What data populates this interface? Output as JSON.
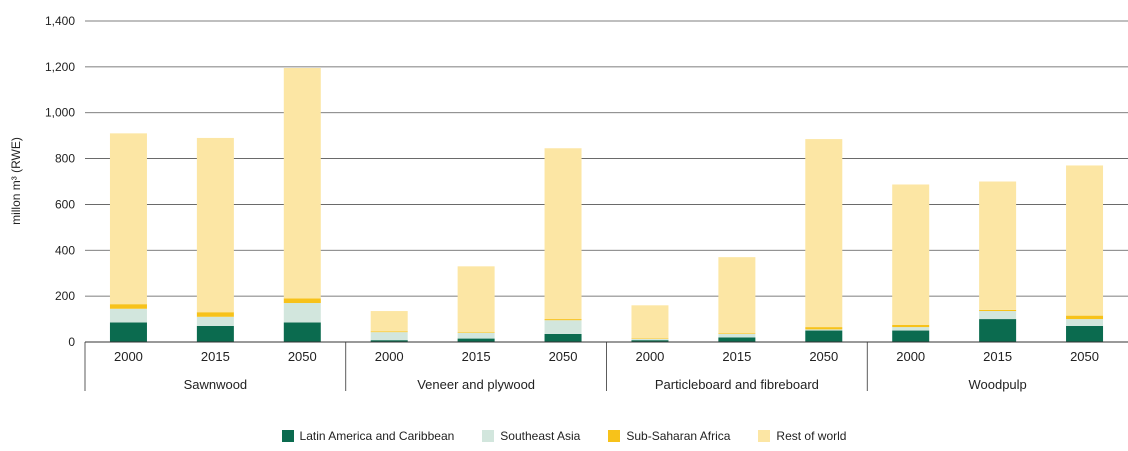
{
  "chart_data": {
    "type": "bar",
    "stacked": true,
    "ylabel": "millon m³ (RWE)",
    "ylim": [
      0,
      1400
    ],
    "yticks": [
      "0",
      "200",
      "400",
      "600",
      "800",
      "1,000",
      "1,200",
      "1,400"
    ],
    "grid": true,
    "legend_position": "bottom",
    "groups": [
      {
        "name": "Sawnwood",
        "years": [
          "2000",
          "2015",
          "2050"
        ]
      },
      {
        "name": "Veneer and plywood",
        "years": [
          "2000",
          "2015",
          "2050"
        ]
      },
      {
        "name": "Particleboard and fibreboard",
        "years": [
          "2000",
          "2015",
          "2050"
        ]
      },
      {
        "name": "Woodpulp",
        "years": [
          "2000",
          "2015",
          "2050"
        ]
      }
    ],
    "series": [
      {
        "name": "Latin America and Caribbean",
        "color": "#0b6b4f",
        "values": [
          85,
          70,
          85,
          8,
          15,
          35,
          8,
          20,
          50,
          50,
          100,
          70
        ]
      },
      {
        "name": "Southeast Asia",
        "color": "#d2e6dd",
        "values": [
          60,
          40,
          85,
          35,
          25,
          60,
          5,
          15,
          5,
          15,
          35,
          30
        ]
      },
      {
        "name": "Sub-Saharan Africa",
        "color": "#f7c21a",
        "values": [
          20,
          20,
          20,
          3,
          3,
          5,
          2,
          3,
          10,
          10,
          5,
          15
        ]
      },
      {
        "name": "Rest of world",
        "color": "#fce6a4",
        "values": [
          745,
          760,
          1005,
          89,
          287,
          745,
          145,
          332,
          820,
          612,
          560,
          655
        ]
      }
    ]
  }
}
